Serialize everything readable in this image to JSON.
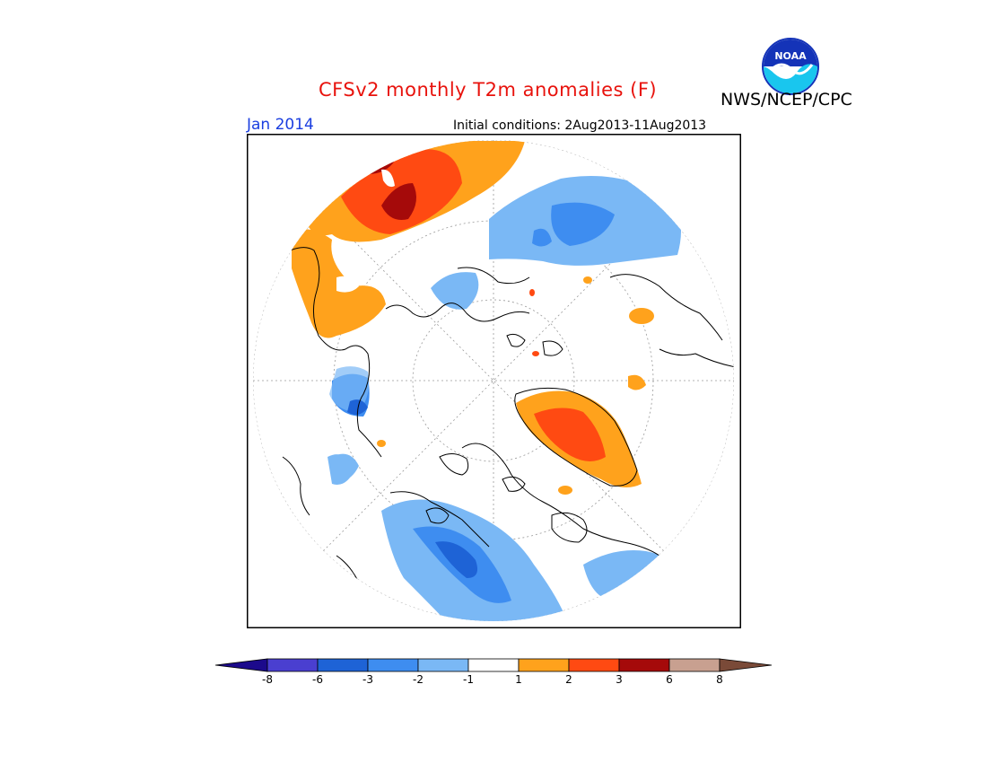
{
  "header": {
    "title": "CFSv2 monthly T2m anomalies (F)",
    "org": "NWS/NCEP/CPC",
    "valid_month": "Jan 2014",
    "initial_conditions": "Initial conditions: 2Aug2013-11Aug2013",
    "logo_text": "NOAA"
  },
  "legend": {
    "ticks": [
      "-8",
      "-6",
      "-3",
      "-2",
      "-1",
      "1",
      "2",
      "3",
      "6",
      "8"
    ],
    "colors": {
      "lt_neg8": "#1c0a8c",
      "neg8_neg6": "#4a3fd0",
      "neg6_neg3": "#1e63d6",
      "neg3_neg2": "#3e8df0",
      "neg2_neg1": "#7ab8f5",
      "neg1_1": "#ffffff",
      "1_2": "#ffa21c",
      "2_3": "#ff4a12",
      "3_6": "#a50a0a",
      "6_8": "#c8a090",
      "gt8": "#7a4a38"
    }
  },
  "map": {
    "projection": "north polar stereographic",
    "colors": {
      "coast": "#000000",
      "grid": "#9a9a9a",
      "warm1": "#ffa21c",
      "warm2": "#ff4a12",
      "warm3": "#a50a0a",
      "cool1": "#7ab8f5",
      "cool2": "#3e8df0",
      "cool3": "#1e63d6"
    }
  }
}
